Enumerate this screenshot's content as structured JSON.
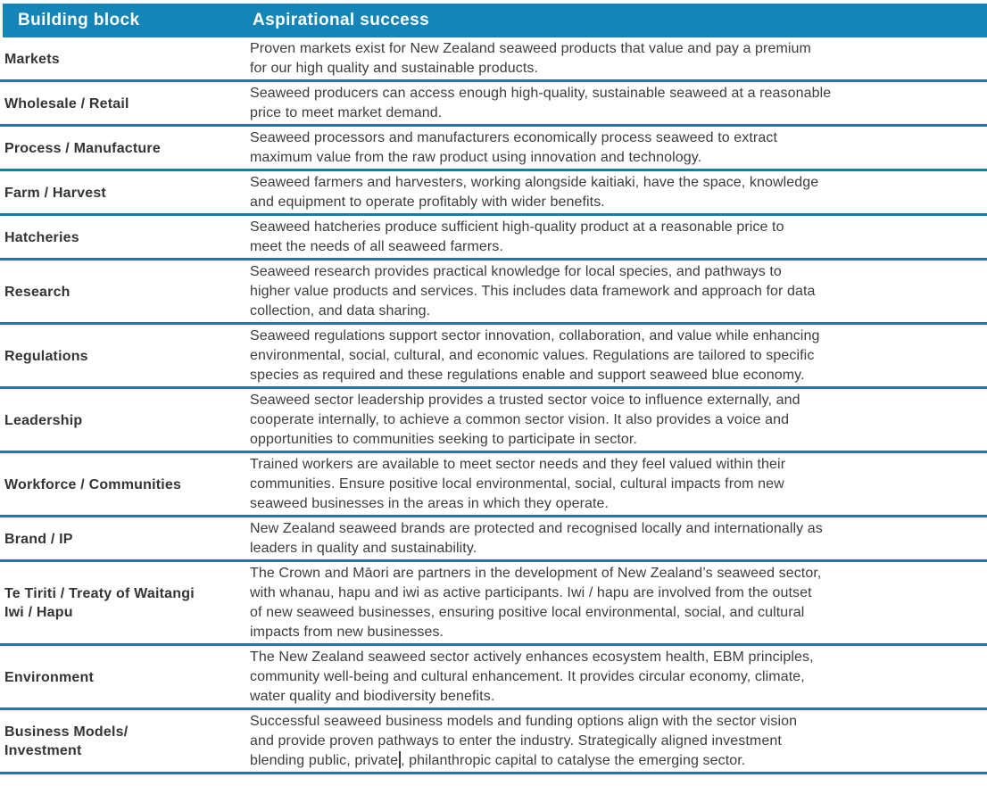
{
  "colors": {
    "header_background": "#1584B6",
    "header_text": "#FFFFFF",
    "divider_line": "#0F81AF",
    "building_block_text": "#343433",
    "body_text": "#3D3D3C",
    "page_background": "#FFFFFF"
  },
  "table": {
    "header": {
      "building_block": "Building block",
      "aspirational_success": "Aspirational success"
    },
    "rows": [
      {
        "block": "Markets",
        "success": "Proven markets exist for New Zealand seaweed products that value and pay a premium\nfor our high quality and sustainable products."
      },
      {
        "block": "Wholesale / Retail",
        "success": "Seaweed producers can access enough high-quality, sustainable seaweed at a reasonable\nprice to meet market demand."
      },
      {
        "block": "Process / Manufacture",
        "success": "Seaweed processors and manufacturers economically process seaweed to extract\nmaximum value from the raw product using innovation and technology."
      },
      {
        "block": "Farm / Harvest",
        "success": "Seaweed farmers and harvesters, working alongside kaitiaki, have the space, knowledge\nand equipment to operate profitably with wider benefits."
      },
      {
        "block": "Hatcheries",
        "success": "Seaweed hatcheries produce sufficient high-quality product at a reasonable price to\nmeet the needs of all seaweed farmers."
      },
      {
        "block": "Research",
        "success": "Seaweed research provides practical knowledge for local species, and pathways to\nhigher value products and services. This includes data framework and approach for data\ncollection, and data sharing."
      },
      {
        "block": "Regulations",
        "success": "Seaweed regulations support sector innovation, collaboration, and value while enhancing\nenvironmental, social, cultural, and economic values. Regulations are tailored to specific\nspecies as required and these regulations enable and support seaweed blue economy."
      },
      {
        "block": "Leadership",
        "success": "Seaweed sector leadership provides a trusted sector voice to influence externally, and\ncooperate internally, to achieve a common sector vision. It also provides a voice and\nopportunities to communities seeking to participate in sector."
      },
      {
        "block": "Workforce / Communities",
        "success": "Trained workers are available to meet sector needs and they feel valued within their\ncommunities. Ensure positive local environmental, social, cultural impacts from new\nseaweed businesses in the areas in which they operate."
      },
      {
        "block": "Brand / IP",
        "success": "New Zealand seaweed brands are protected and recognised locally and internationally as\nleaders in quality and sustainability."
      },
      {
        "block": "Te Tiriti / Treaty of Waitangi\nIwi / Hapu",
        "success": "The Crown and Māori are partners in the development of New Zealand’s seaweed sector,\nwith whanau, hapu and iwi as active participants. Iwi / hapu are involved from the outset\nof new seaweed businesses, ensuring positive local environmental, social, and cultural\nimpacts from new businesses."
      },
      {
        "block": "Environment",
        "success": "The New Zealand seaweed sector actively enhances ecosystem health, EBM principles,\ncommunity well-being and cultural enhancement. It provides circular economy, climate,\nwater quality and biodiversity benefits."
      },
      {
        "block": "Business Models/\nInvestment",
        "success_before_caret": "Successful seaweed business models and funding options align with the sector vision\nand provide proven pathways to enter the industry. Strategically aligned investment\nblending public, private",
        "success_after_caret": ", philanthropic capital to catalyse the emerging sector.",
        "has_text_cursor": true
      }
    ]
  }
}
